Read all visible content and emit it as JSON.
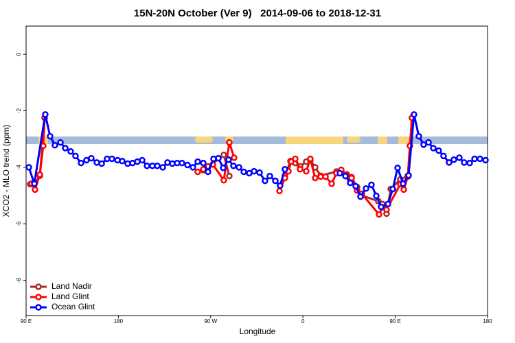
{
  "chart_data": {
    "type": "line",
    "title": "15N-20N October (Ver 9)   2014-09-06 to 2018-12-31",
    "x_label": "Longitude",
    "y_label": "XCO2 - MLO trend (ppm)",
    "xlim": [
      90,
      540
    ],
    "ylim": [
      -9.25,
      1
    ],
    "xticks": [
      {
        "value": 90,
        "label": "90 E"
      },
      {
        "value": 180,
        "label": "180"
      },
      {
        "value": 270,
        "label": "90 W"
      },
      {
        "value": 360,
        "label": "0"
      },
      {
        "value": 450,
        "label": "90 E"
      },
      {
        "value": 540,
        "label": "180"
      }
    ],
    "yticks": [
      0,
      -2,
      -4,
      -6,
      -8
    ],
    "legend": "bottomleft",
    "series": [
      {
        "name": "Land Nadir",
        "color": "#a52a2a",
        "x": [
          94.0,
          98.0,
          103.4,
          108.1,
          200,
          257.4,
          262.8,
          267.4,
          282.8,
          288.2,
          330,
          342.4,
          347.8,
          352.5,
          357.2,
          363.2,
          367.2,
          371.9,
          377.3,
          392.7,
          397.3,
          402.7,
          407.4,
          412.8,
          417.4,
          433.5,
          437.5,
          441.5,
          445.6,
          454.9,
          462.3,
          466.3
        ],
        "values": [
          -4.6,
          -4.6,
          -4.3,
          -2.25,
          null,
          -4.16,
          -4.1,
          -4.0,
          -3.56,
          -4.31,
          null,
          -4.3,
          -3.78,
          -3.85,
          -3.97,
          -3.8,
          -3.75,
          -4.0,
          -4.3,
          -4.15,
          -4.1,
          -4.25,
          -4.35,
          -4.7,
          -5.0,
          -5.2,
          -5.3,
          -5.64,
          -4.77,
          -4.43,
          -4.3,
          -2.25
        ]
      },
      {
        "name": "Land Glint",
        "color": "#ff0000",
        "x": [
          95.4,
          98.7,
          103.4,
          106.7,
          108.1,
          200,
          257.4,
          262.8,
          267.4,
          272.1,
          282.8,
          288.2,
          292.9,
          320,
          337.1,
          342.4,
          345.8,
          348.5,
          352.5,
          357.2,
          363.2,
          367.2,
          371.9,
          377.3,
          382.0,
          388.0,
          392.7,
          397.3,
          402.7,
          407.4,
          412.8,
          417.4,
          434.2,
          437.5,
          441.5,
          454.9,
          458.3,
          462.3,
          464.3,
          466.3
        ],
        "values": [
          -4.58,
          -4.79,
          -4.26,
          -3.24,
          -2.25,
          null,
          -4.16,
          -4.07,
          -3.97,
          -3.9,
          -4.46,
          -3.12,
          -3.66,
          null,
          -4.84,
          -4.38,
          -4.14,
          -3.8,
          -3.7,
          -4.07,
          -4.14,
          -3.7,
          -4.38,
          -4.33,
          -4.33,
          -4.58,
          -4.21,
          -4.09,
          -4.29,
          -4.38,
          -4.82,
          -4.94,
          -5.67,
          -5.42,
          -5.5,
          -4.6,
          -4.79,
          -4.33,
          -3.24,
          -2.25
        ]
      },
      {
        "name": "Ocean Glint",
        "color": "#0000ff",
        "x": [
          92.7,
          98.0,
          108.7,
          113.4,
          118.1,
          123.5,
          128.2,
          133.5,
          138.2,
          143.6,
          148.9,
          153.6,
          159.0,
          163.7,
          169.0,
          173.7,
          179.1,
          183.7,
          189.1,
          193.8,
          198.5,
          203.2,
          207.9,
          213.2,
          217.9,
          223.3,
          227.9,
          232.6,
          237.3,
          242.0,
          247.4,
          252.7,
          257.4,
          262.8,
          267.4,
          272.8,
          277.5,
          282.2,
          287.5,
          292.2,
          297.6,
          302.3,
          307.6,
          312.3,
          317.7,
          323.0,
          327.7,
          333.1,
          337.7,
          342.4,
          370,
          396.0,
          401.4,
          406.1,
          411.4,
          416.1,
          421.5,
          426.8,
          431.5,
          436.2,
          442.9,
          447.6,
          452.3,
          457.6,
          463.0,
          468.3,
          473.0,
          477.7,
          482.4,
          487.1,
          492.4,
          497.1,
          502.5,
          507.2,
          512.5,
          517.2,
          522.6,
          527.3,
          532.6,
          538.0
        ],
        "values": [
          -4.0,
          -4.58,
          -2.13,
          -2.9,
          -3.22,
          -3.12,
          -3.32,
          -3.44,
          -3.6,
          -3.85,
          -3.75,
          -3.68,
          -3.83,
          -3.87,
          -3.7,
          -3.7,
          -3.75,
          -3.78,
          -3.87,
          -3.85,
          -3.8,
          -3.75,
          -3.95,
          -3.95,
          -3.95,
          -4.0,
          -3.83,
          -3.87,
          -3.85,
          -3.85,
          -3.92,
          -4.0,
          -3.8,
          -3.85,
          -4.16,
          -3.7,
          -3.68,
          -4.02,
          -3.73,
          -3.95,
          -4.0,
          -4.16,
          -4.21,
          -4.14,
          -4.19,
          -4.48,
          -4.31,
          -4.48,
          -4.65,
          -4.07,
          null,
          -4.21,
          -4.31,
          -4.55,
          -4.67,
          -5.04,
          -4.75,
          -4.62,
          -5.01,
          -5.4,
          -5.3,
          -4.77,
          -4.02,
          -4.58,
          -4.29,
          -2.13,
          -2.9,
          -3.2,
          -3.12,
          -3.32,
          -3.41,
          -3.6,
          -3.83,
          -3.73,
          -3.66,
          -3.83,
          -3.85,
          -3.7,
          -3.7,
          -3.75
        ]
      }
    ]
  }
}
